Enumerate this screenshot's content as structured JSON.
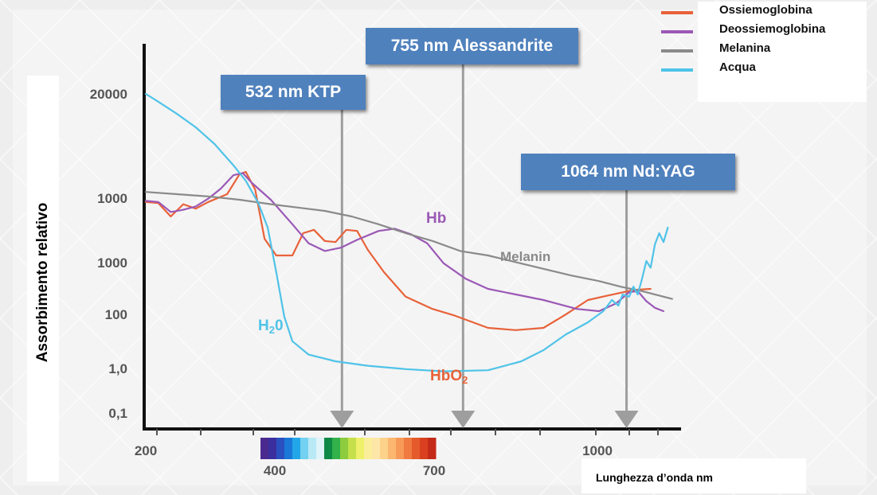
{
  "chart_data": {
    "type": "line",
    "xlabel": "Lunghezza d’onda nm",
    "ylabel": "Assorbimento relativo",
    "x_ticks": [
      "200",
      "1000"
    ],
    "y_ticks": [
      "20000",
      "1000",
      "1000",
      "100",
      "1,0",
      "0,1"
    ],
    "spectrum_ticks": [
      "400",
      "700"
    ],
    "legend": [
      {
        "label": "Ossiemoglobina",
        "color": "#e8623a"
      },
      {
        "label": "Deossiemoglobina",
        "color": "#9b59b6"
      },
      {
        "label": "Melanina",
        "color": "#8a8a8a"
      },
      {
        "label": "Acqua",
        "color": "#4fc3e8"
      }
    ],
    "curve_labels": {
      "hb": "Hb",
      "melanin": "Melanin",
      "h2o_main": "H",
      "h2o_sub": "2",
      "h2o_end": "0",
      "hbo2_main": "HbO",
      "hbo2_sub": "2"
    },
    "lasers": [
      {
        "label": "532 nm KTP",
        "wavelength_nm": 532
      },
      {
        "label": "755 nm Alessandrite",
        "wavelength_nm": 755
      },
      {
        "label": "1064 nm Nd:YAG",
        "wavelength_nm": 1064
      }
    ],
    "series": [
      {
        "name": "Ossiemoglobina",
        "color": "#e8623a",
        "points": [
          [
            200,
            0.03
          ],
          [
            220,
            0.02
          ],
          [
            240,
            -0.1
          ],
          [
            260,
            0.01
          ],
          [
            280,
            -0.03
          ],
          [
            300,
            0.03
          ],
          [
            330,
            0.1
          ],
          [
            350,
            0.28
          ],
          [
            360,
            0.3
          ],
          [
            375,
            0.14
          ],
          [
            390,
            -0.3
          ],
          [
            410,
            -0.45
          ],
          [
            440,
            -0.45
          ],
          [
            460,
            -0.25
          ],
          [
            480,
            -0.22
          ],
          [
            500,
            -0.32
          ],
          [
            520,
            -0.33
          ],
          [
            540,
            -0.22
          ],
          [
            560,
            -0.23
          ],
          [
            580,
            -0.4
          ],
          [
            610,
            -0.6
          ],
          [
            650,
            -0.82
          ],
          [
            700,
            -0.93
          ],
          [
            740,
            -0.99
          ],
          [
            800,
            -1.1
          ],
          [
            850,
            -1.12
          ],
          [
            900,
            -1.1
          ],
          [
            940,
            -0.98
          ],
          [
            980,
            -0.85
          ],
          [
            1020,
            -0.81
          ],
          [
            1080,
            -0.76
          ],
          [
            1120,
            -0.75
          ]
        ]
      },
      {
        "name": "Deossiemoglobina",
        "color": "#9b59b6",
        "points": [
          [
            200,
            0.04
          ],
          [
            220,
            0.03
          ],
          [
            240,
            -0.06
          ],
          [
            260,
            -0.04
          ],
          [
            280,
            -0.01
          ],
          [
            300,
            0.06
          ],
          [
            320,
            0.15
          ],
          [
            340,
            0.27
          ],
          [
            355,
            0.29
          ],
          [
            370,
            0.2
          ],
          [
            400,
            0.05
          ],
          [
            440,
            -0.17
          ],
          [
            470,
            -0.34
          ],
          [
            500,
            -0.41
          ],
          [
            530,
            -0.38
          ],
          [
            560,
            -0.31
          ],
          [
            600,
            -0.23
          ],
          [
            630,
            -0.21
          ],
          [
            660,
            -0.26
          ],
          [
            690,
            -0.34
          ],
          [
            720,
            -0.52
          ],
          [
            760,
            -0.66
          ],
          [
            800,
            -0.75
          ],
          [
            850,
            -0.8
          ],
          [
            900,
            -0.85
          ],
          [
            960,
            -0.93
          ],
          [
            1000,
            -0.95
          ],
          [
            1040,
            -0.88
          ],
          [
            1070,
            -0.78
          ],
          [
            1090,
            -0.77
          ],
          [
            1110,
            -0.86
          ],
          [
            1130,
            -0.92
          ],
          [
            1150,
            -0.95
          ]
        ]
      },
      {
        "name": "Melanina",
        "color": "#8a8a8a",
        "points": [
          [
            200,
            0.12
          ],
          [
            250,
            0.1
          ],
          [
            300,
            0.08
          ],
          [
            350,
            0.05
          ],
          [
            400,
            0.01
          ],
          [
            450,
            -0.02
          ],
          [
            500,
            -0.05
          ],
          [
            550,
            -0.1
          ],
          [
            600,
            -0.17
          ],
          [
            650,
            -0.25
          ],
          [
            700,
            -0.32
          ],
          [
            750,
            -0.41
          ],
          [
            800,
            -0.45
          ],
          [
            850,
            -0.51
          ],
          [
            900,
            -0.57
          ],
          [
            950,
            -0.63
          ],
          [
            1000,
            -0.68
          ],
          [
            1050,
            -0.73
          ],
          [
            1100,
            -0.77
          ],
          [
            1150,
            -0.82
          ],
          [
            1170,
            -0.84
          ]
        ]
      },
      {
        "name": "Acqua",
        "color": "#4fc3e8",
        "points": [
          [
            200,
            1.0
          ],
          [
            220,
            0.93
          ],
          [
            250,
            0.82
          ],
          [
            280,
            0.7
          ],
          [
            310,
            0.55
          ],
          [
            340,
            0.36
          ],
          [
            360,
            0.22
          ],
          [
            380,
            0.02
          ],
          [
            395,
            -0.2
          ],
          [
            410,
            -0.6
          ],
          [
            425,
            -1.0
          ],
          [
            440,
            -1.22
          ],
          [
            470,
            -1.34
          ],
          [
            520,
            -1.4
          ],
          [
            580,
            -1.44
          ],
          [
            650,
            -1.47
          ],
          [
            720,
            -1.49
          ],
          [
            800,
            -1.48
          ],
          [
            860,
            -1.4
          ],
          [
            900,
            -1.3
          ],
          [
            940,
            -1.16
          ],
          [
            980,
            -1.05
          ],
          [
            1010,
            -0.95
          ],
          [
            1030,
            -0.85
          ],
          [
            1045,
            -0.9
          ],
          [
            1055,
            -0.8
          ],
          [
            1070,
            -0.82
          ],
          [
            1080,
            -0.73
          ],
          [
            1090,
            -0.8
          ],
          [
            1100,
            -0.66
          ],
          [
            1110,
            -0.5
          ],
          [
            1120,
            -0.56
          ],
          [
            1130,
            -0.35
          ],
          [
            1140,
            -0.25
          ],
          [
            1150,
            -0.33
          ],
          [
            1160,
            -0.2
          ]
        ]
      }
    ]
  }
}
